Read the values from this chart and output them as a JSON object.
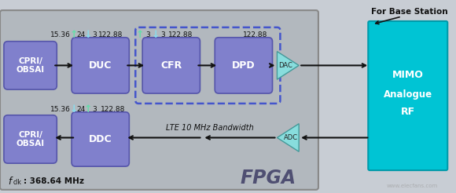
{
  "fig_w": 5.8,
  "fig_h": 2.46,
  "dpi": 100,
  "bg_color": "#c8cdd4",
  "fpga_fill": "#b2b8be",
  "fpga_edge": "#888888",
  "block_fill": "#8080cc",
  "block_edge": "#5555aa",
  "dashed_color": "#4455cc",
  "mimo_fill": "#00c4d4",
  "mimo_edge": "#009aaa",
  "dac_fill": "#88dddd",
  "dac_edge": "#449999",
  "arrow_color": "#111111",
  "up_color": "#66ddaa",
  "dn_color": "#88ddee",
  "text_dark": "#111111",
  "text_white": "#ffffff",
  "fpga_text_color": "#44446a",
  "watermark_color": "#999999",
  "for_base_station": "For Base Station",
  "fpga_label": "FPGA",
  "clk_val": ": 368.64 MHz",
  "lte_label": "LTE 10 MHz Bandwidth",
  "dac_label": "DAC",
  "adc_label": "ADC",
  "mimo_lines": [
    "MIMO",
    "Analogue",
    "RF"
  ],
  "top_row_labels": [
    "15.36",
    "24",
    "3",
    "122.88",
    "3",
    "3",
    "122.88",
    "122.88"
  ],
  "top_row_ups": [
    true,
    false,
    true,
    false
  ],
  "bot_row_labels": [
    "15.36",
    "24",
    "3",
    "122.88"
  ],
  "bot_row_ups": [
    false,
    true
  ],
  "blocks_top": [
    "CPRI/\nOBSAI",
    "DUC",
    "CFR",
    "DPD"
  ],
  "blocks_bot": [
    "CPRI/\nOBSAI",
    "DDC"
  ]
}
